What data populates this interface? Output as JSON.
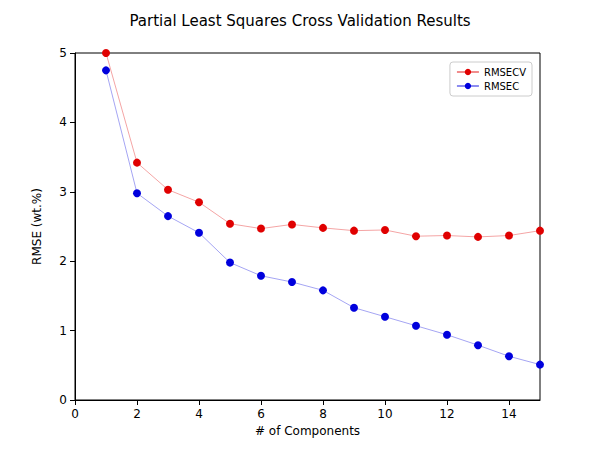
{
  "chart_data": {
    "type": "line",
    "title": "Partial Least Squares Cross Validation Results",
    "x_label": "# of Components",
    "y_label": "RMSE (wt.%)",
    "x": [
      1,
      2,
      3,
      4,
      5,
      6,
      7,
      8,
      9,
      10,
      11,
      12,
      13,
      14,
      15
    ],
    "series": [
      {
        "name": "RMSECV",
        "color": "#e00000",
        "marker": "circle",
        "line_style": "solid",
        "values": [
          5.0,
          3.42,
          3.03,
          2.85,
          2.54,
          2.47,
          2.53,
          2.48,
          2.44,
          2.45,
          2.36,
          2.37,
          2.35,
          2.37,
          2.44
        ]
      },
      {
        "name": "RMSEC",
        "color": "#0000dd",
        "marker": "circle",
        "line_style": "solid",
        "values": [
          4.75,
          2.98,
          2.65,
          2.41,
          1.98,
          1.79,
          1.7,
          1.58,
          1.33,
          1.2,
          1.07,
          0.94,
          0.79,
          0.63,
          0.51
        ]
      }
    ],
    "xlim": [
      0,
      15
    ],
    "xticks": [
      0,
      2,
      4,
      6,
      8,
      10,
      12,
      14
    ],
    "ylim": [
      0,
      5
    ],
    "yticks": [
      0,
      1,
      2,
      3,
      4,
      5
    ],
    "grid": false,
    "legend": "upper right"
  }
}
